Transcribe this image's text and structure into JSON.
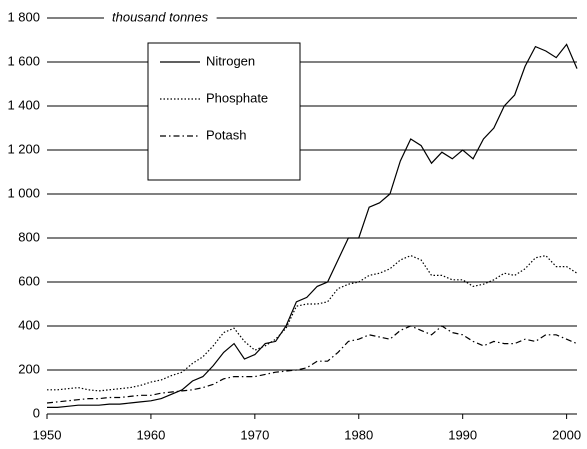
{
  "chart_data": {
    "type": "line",
    "annotation": "thousand tonnes",
    "x": [
      1950,
      1951,
      1952,
      1953,
      1954,
      1955,
      1956,
      1957,
      1958,
      1959,
      1960,
      1961,
      1962,
      1963,
      1964,
      1965,
      1966,
      1967,
      1968,
      1969,
      1970,
      1971,
      1972,
      1973,
      1974,
      1975,
      1976,
      1977,
      1978,
      1979,
      1980,
      1981,
      1982,
      1983,
      1984,
      1985,
      1986,
      1987,
      1988,
      1989,
      1990,
      1991,
      1992,
      1993,
      1994,
      1995,
      1996,
      1997,
      1998,
      1999,
      2000,
      2001
    ],
    "series": [
      {
        "name": "Nitrogen",
        "color": "#000000",
        "style": "solid",
        "values": [
          30,
          30,
          35,
          40,
          40,
          40,
          45,
          45,
          50,
          55,
          60,
          70,
          90,
          110,
          150,
          170,
          220,
          280,
          320,
          250,
          270,
          320,
          330,
          400,
          510,
          530,
          580,
          600,
          700,
          800,
          800,
          940,
          960,
          1000,
          1150,
          1250,
          1220,
          1140,
          1190,
          1160,
          1200,
          1160,
          1250,
          1300,
          1400,
          1450,
          1580,
          1670,
          1650,
          1620,
          1680,
          1570
        ]
      },
      {
        "name": "Phosphate",
        "color": "#000000",
        "style": "dotted",
        "values": [
          110,
          110,
          115,
          120,
          110,
          105,
          110,
          115,
          120,
          130,
          145,
          155,
          175,
          190,
          230,
          260,
          310,
          370,
          390,
          330,
          290,
          310,
          340,
          390,
          490,
          500,
          500,
          510,
          570,
          590,
          600,
          630,
          640,
          660,
          700,
          720,
          700,
          630,
          630,
          610,
          610,
          580,
          590,
          610,
          640,
          630,
          660,
          710,
          720,
          670,
          670,
          640
        ]
      },
      {
        "name": "Potash",
        "color": "#000000",
        "style": "dashdot",
        "values": [
          50,
          55,
          60,
          65,
          70,
          70,
          75,
          75,
          80,
          85,
          85,
          95,
          100,
          105,
          110,
          120,
          135,
          160,
          170,
          170,
          170,
          180,
          190,
          195,
          200,
          210,
          240,
          240,
          280,
          330,
          340,
          360,
          350,
          340,
          380,
          400,
          380,
          360,
          400,
          370,
          360,
          330,
          310,
          330,
          320,
          320,
          340,
          330,
          360,
          360,
          340,
          320
        ]
      }
    ],
    "xlim": [
      1950,
      2001
    ],
    "xticks": [
      1950,
      1960,
      1970,
      1980,
      1990,
      2000
    ],
    "ylim": [
      0,
      1800
    ],
    "yticks": [
      0,
      200,
      400,
      600,
      800,
      {
        "value": 1000,
        "label": "1 000"
      },
      {
        "value": 1200,
        "label": "1 200"
      },
      {
        "value": 1400,
        "label": "1 400"
      },
      {
        "value": 1600,
        "label": "1 600"
      },
      {
        "value": 1800,
        "label": "1 800"
      }
    ],
    "grid": true
  }
}
